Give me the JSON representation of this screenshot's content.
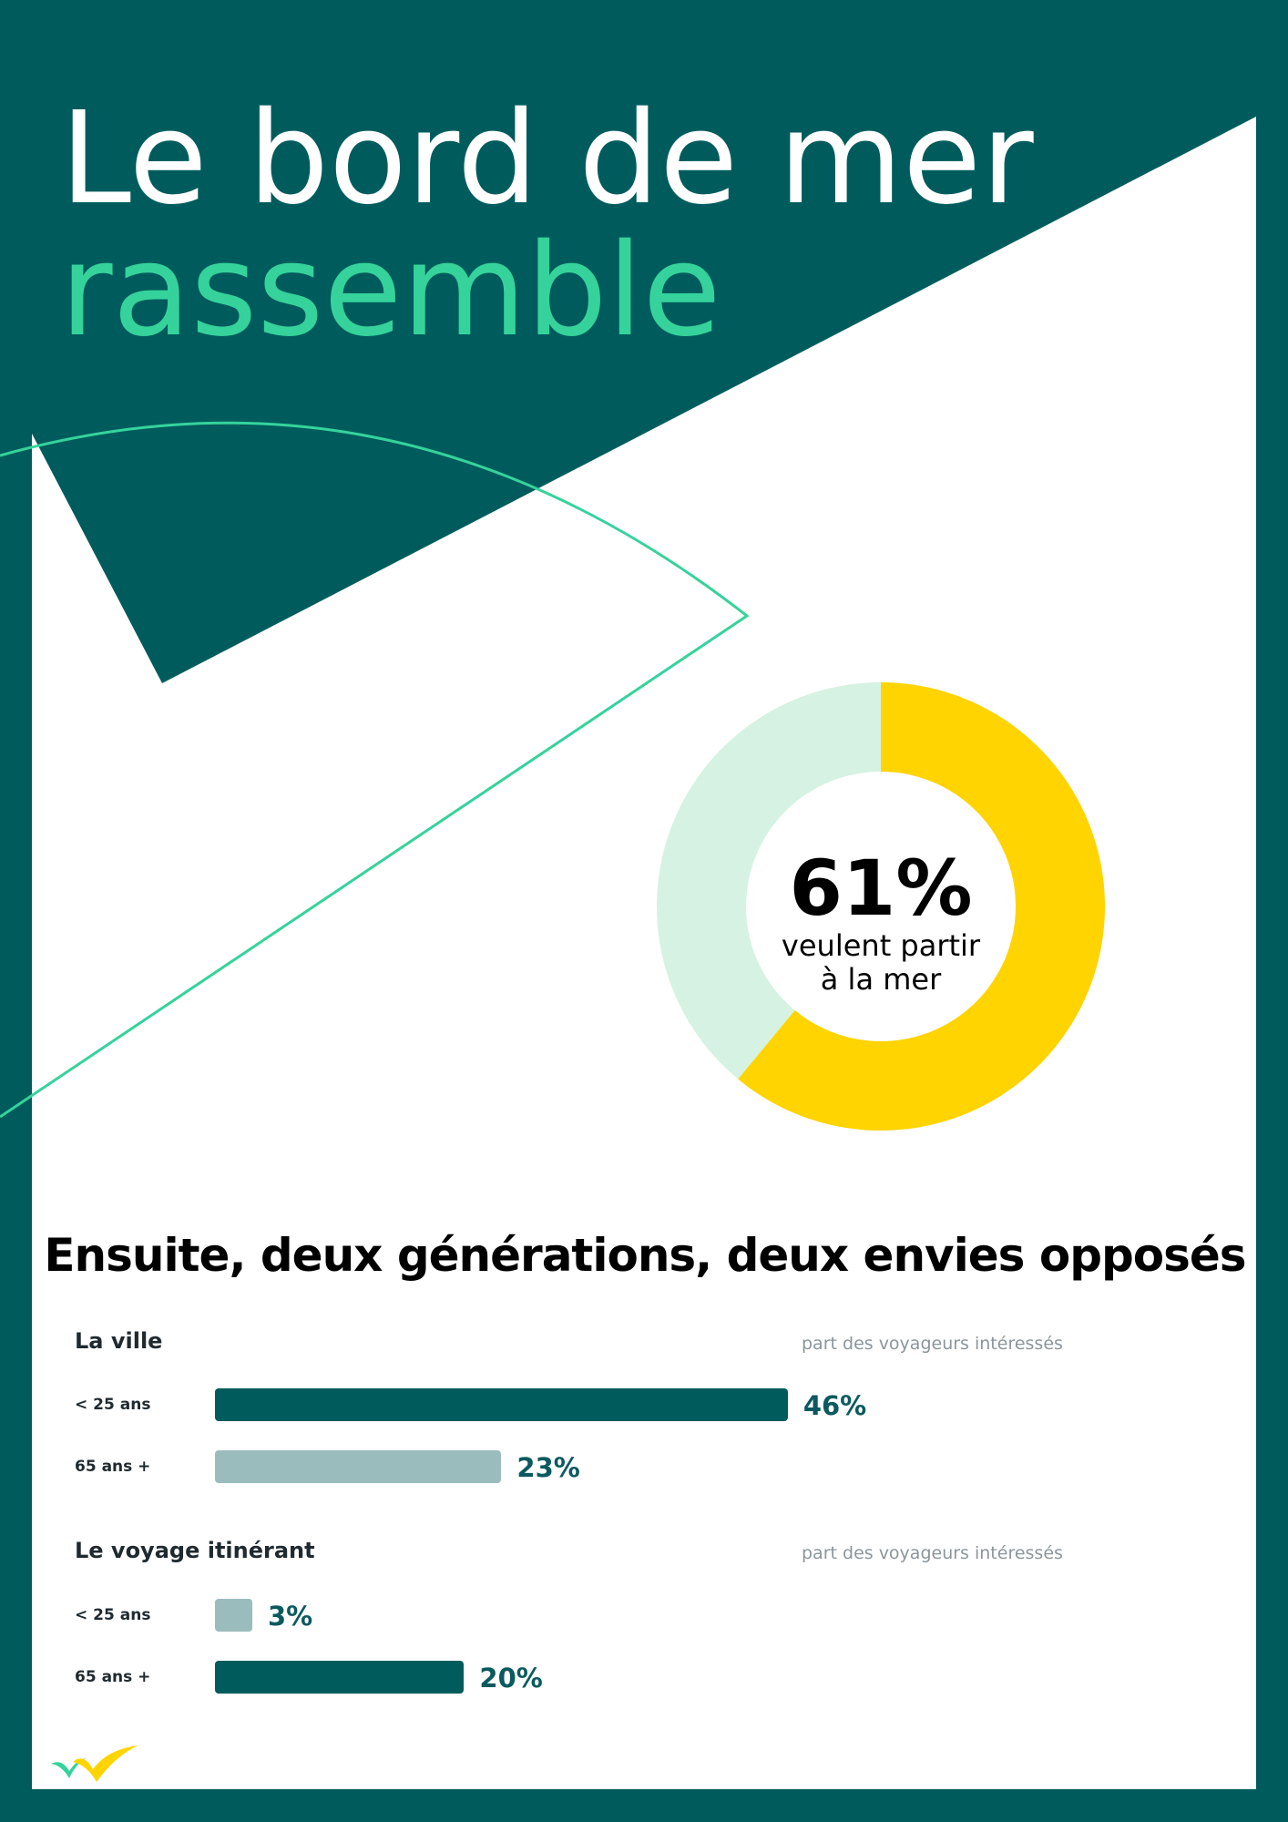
{
  "colors": {
    "background": "#005c5c",
    "panel": "#ffffff",
    "accent_green": "#35d39b",
    "donut_filled": "#ffd400",
    "donut_remaining": "#d6f2e2",
    "bar_dark": "#005c5c",
    "bar_light": "#9bbcbc",
    "value_text": "#0b5a5f"
  },
  "title": {
    "line1": "Le bord de mer",
    "line2": "rassemble"
  },
  "donut": {
    "value_label": "61%",
    "caption_line1": "veulent partir",
    "caption_line2": "à la mer"
  },
  "section_title": "Ensuite, deux générations, deux envies opposés",
  "chart_data": [
    {
      "type": "pie",
      "variant": "donut",
      "slices": [
        {
          "label": "veulent partir à la mer",
          "value": 61
        },
        {
          "label": "",
          "value": 39
        }
      ],
      "center_label": "61%"
    },
    {
      "type": "bar",
      "orientation": "horizontal",
      "title": "La ville",
      "note": "part des voyageurs intéressés",
      "categories": [
        "< 25 ans",
        "65 ans +"
      ],
      "values": [
        46,
        23
      ],
      "value_labels": [
        "46%",
        "23%"
      ],
      "bar_colors": [
        "#005c5c",
        "#9bbcbc"
      ]
    },
    {
      "type": "bar",
      "orientation": "horizontal",
      "title": "Le voyage itinérant",
      "note": "part des voyageurs intéressés",
      "categories": [
        "< 25 ans",
        "65 ans +"
      ],
      "values": [
        3,
        20
      ],
      "value_labels": [
        "3%",
        "20%"
      ],
      "bar_colors": [
        "#9bbcbc",
        "#005c5c"
      ]
    }
  ],
  "logo": {
    "icon": "brand-check-logo-icon"
  }
}
